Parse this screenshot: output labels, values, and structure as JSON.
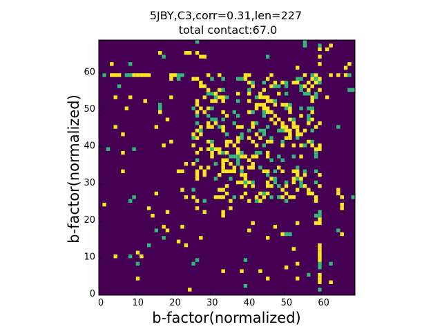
{
  "chart_data": {
    "type": "heatmap",
    "title": "5JBY,C3,corr=0.31,len=227",
    "subtitle": "total contact:67.0",
    "xlabel": "b-factor(normalized)",
    "ylabel": "b-factor(normalized)",
    "n": 69,
    "xlim": [
      0,
      69
    ],
    "ylim": [
      0,
      69
    ],
    "x_ticks": [
      0,
      10,
      20,
      30,
      40,
      50,
      60
    ],
    "y_ticks": [
      0,
      10,
      20,
      30,
      40,
      50,
      60
    ],
    "grid": false,
    "colors": {
      "background": "#440154",
      "medium": "#35b779",
      "high": "#fde725"
    },
    "value_levels": [
      0,
      0.5,
      1
    ],
    "notes": "Sparse contact map: most cells 0 (dark purple); scattered cells at 1 (yellow) and 0.5 (green). Dense horizontal band near y=59, vertical band near x=59; heavy clustering in region x 26-58, y 25-58."
  }
}
